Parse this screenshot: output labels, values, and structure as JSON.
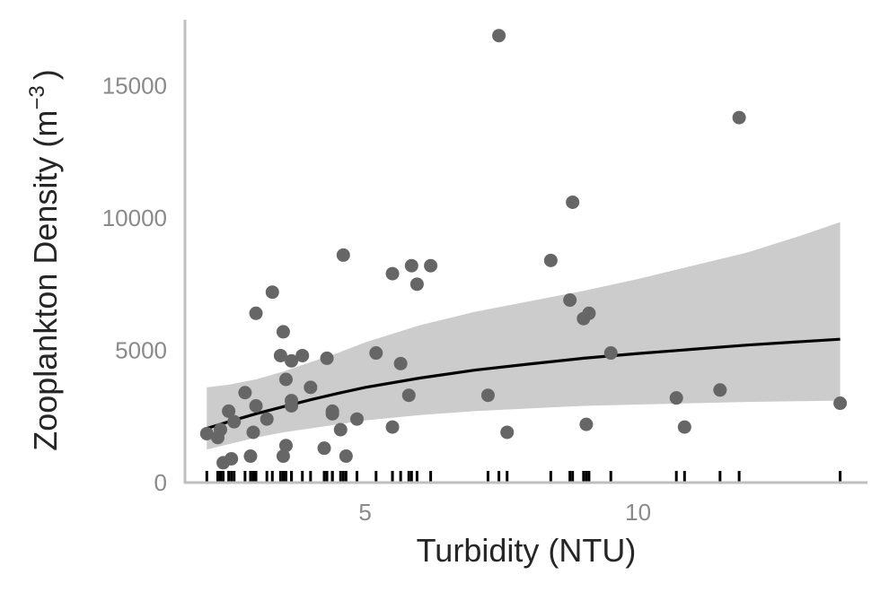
{
  "chart_data": {
    "type": "scatter",
    "xlabel": "Turbidity (NTU)",
    "ylabel_main": "Zooplankton Density (m",
    "ylabel_sup": "−3",
    "ylabel_end": ")",
    "xlim": [
      1.7,
      14.2
    ],
    "ylim": [
      0,
      17500
    ],
    "xticks": [
      5,
      10
    ],
    "yticks": [
      0,
      5000,
      10000,
      15000
    ],
    "grid": false,
    "point_color": "#666666",
    "line_color": "#000000",
    "band_color": "#cccccc",
    "axis_color": "#bfbfbf",
    "points": [
      {
        "x": 2.1,
        "y": 1850
      },
      {
        "x": 2.3,
        "y": 1700
      },
      {
        "x": 2.35,
        "y": 2000
      },
      {
        "x": 2.4,
        "y": 750
      },
      {
        "x": 2.5,
        "y": 2700
      },
      {
        "x": 2.55,
        "y": 900
      },
      {
        "x": 2.6,
        "y": 2300
      },
      {
        "x": 2.8,
        "y": 3400
      },
      {
        "x": 2.9,
        "y": 1000
      },
      {
        "x": 2.95,
        "y": 1900
      },
      {
        "x": 3.0,
        "y": 2900
      },
      {
        "x": 3.0,
        "y": 6400
      },
      {
        "x": 3.2,
        "y": 2400
      },
      {
        "x": 3.3,
        "y": 7200
      },
      {
        "x": 3.45,
        "y": 4800
      },
      {
        "x": 3.5,
        "y": 5700
      },
      {
        "x": 3.5,
        "y": 1000
      },
      {
        "x": 3.55,
        "y": 1400
      },
      {
        "x": 3.55,
        "y": 3900
      },
      {
        "x": 3.65,
        "y": 4600
      },
      {
        "x": 3.65,
        "y": 3100
      },
      {
        "x": 3.65,
        "y": 2900
      },
      {
        "x": 3.85,
        "y": 4800
      },
      {
        "x": 4.0,
        "y": 3600
      },
      {
        "x": 4.25,
        "y": 1300
      },
      {
        "x": 4.3,
        "y": 4700
      },
      {
        "x": 4.4,
        "y": 2600
      },
      {
        "x": 4.4,
        "y": 2700
      },
      {
        "x": 4.55,
        "y": 2000
      },
      {
        "x": 4.6,
        "y": 8600
      },
      {
        "x": 4.65,
        "y": 1000
      },
      {
        "x": 4.85,
        "y": 2400
      },
      {
        "x": 5.2,
        "y": 4900
      },
      {
        "x": 5.5,
        "y": 2100
      },
      {
        "x": 5.5,
        "y": 7900
      },
      {
        "x": 5.65,
        "y": 4500
      },
      {
        "x": 5.8,
        "y": 3300
      },
      {
        "x": 5.85,
        "y": 8200
      },
      {
        "x": 5.95,
        "y": 7500
      },
      {
        "x": 6.2,
        "y": 8200
      },
      {
        "x": 7.25,
        "y": 3300
      },
      {
        "x": 7.45,
        "y": 16900
      },
      {
        "x": 7.6,
        "y": 1900
      },
      {
        "x": 8.4,
        "y": 8400
      },
      {
        "x": 8.75,
        "y": 6900
      },
      {
        "x": 8.8,
        "y": 10600
      },
      {
        "x": 9.0,
        "y": 6200
      },
      {
        "x": 9.05,
        "y": 2200
      },
      {
        "x": 9.1,
        "y": 6400
      },
      {
        "x": 9.5,
        "y": 4900
      },
      {
        "x": 10.7,
        "y": 3200
      },
      {
        "x": 10.85,
        "y": 2100
      },
      {
        "x": 11.5,
        "y": 3500
      },
      {
        "x": 11.85,
        "y": 13800
      },
      {
        "x": 13.7,
        "y": 3000
      }
    ],
    "fit_curve": [
      {
        "x": 2.1,
        "y": 2050
      },
      {
        "x": 2.5,
        "y": 2300
      },
      {
        "x": 3.0,
        "y": 2600
      },
      {
        "x": 3.5,
        "y": 2870
      },
      {
        "x": 4.0,
        "y": 3130
      },
      {
        "x": 4.5,
        "y": 3370
      },
      {
        "x": 5.0,
        "y": 3600
      },
      {
        "x": 6.0,
        "y": 3950
      },
      {
        "x": 7.0,
        "y": 4250
      },
      {
        "x": 8.0,
        "y": 4480
      },
      {
        "x": 9.0,
        "y": 4700
      },
      {
        "x": 10.0,
        "y": 4880
      },
      {
        "x": 11.0,
        "y": 5040
      },
      {
        "x": 12.0,
        "y": 5200
      },
      {
        "x": 13.0,
        "y": 5330
      },
      {
        "x": 13.7,
        "y": 5420
      }
    ],
    "ci_upper": [
      {
        "x": 2.1,
        "y": 3600
      },
      {
        "x": 2.5,
        "y": 3700
      },
      {
        "x": 3.0,
        "y": 3900
      },
      {
        "x": 3.5,
        "y": 4200
      },
      {
        "x": 4.0,
        "y": 4550
      },
      {
        "x": 4.5,
        "y": 4900
      },
      {
        "x": 5.0,
        "y": 5300
      },
      {
        "x": 6.0,
        "y": 5950
      },
      {
        "x": 7.0,
        "y": 6450
      },
      {
        "x": 8.0,
        "y": 6850
      },
      {
        "x": 9.0,
        "y": 7250
      },
      {
        "x": 10.0,
        "y": 7700
      },
      {
        "x": 11.0,
        "y": 8200
      },
      {
        "x": 12.0,
        "y": 8700
      },
      {
        "x": 13.0,
        "y": 9350
      },
      {
        "x": 13.7,
        "y": 9850
      }
    ],
    "ci_lower": [
      {
        "x": 2.1,
        "y": 1250
      },
      {
        "x": 2.5,
        "y": 1450
      },
      {
        "x": 3.0,
        "y": 1700
      },
      {
        "x": 3.5,
        "y": 1900
      },
      {
        "x": 4.0,
        "y": 2050
      },
      {
        "x": 4.5,
        "y": 2200
      },
      {
        "x": 5.0,
        "y": 2350
      },
      {
        "x": 6.0,
        "y": 2550
      },
      {
        "x": 7.0,
        "y": 2700
      },
      {
        "x": 8.0,
        "y": 2800
      },
      {
        "x": 9.0,
        "y": 2900
      },
      {
        "x": 10.0,
        "y": 2950
      },
      {
        "x": 11.0,
        "y": 3000
      },
      {
        "x": 12.0,
        "y": 3050
      },
      {
        "x": 13.0,
        "y": 3080
      },
      {
        "x": 13.7,
        "y": 3100
      }
    ]
  }
}
